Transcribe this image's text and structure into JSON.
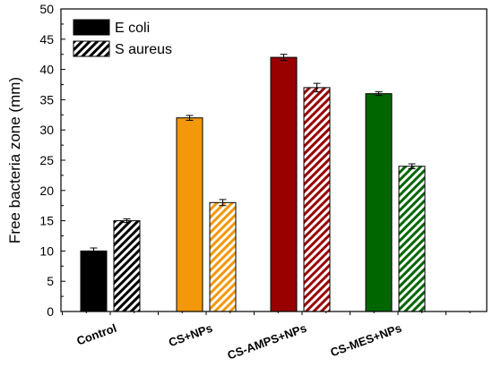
{
  "chart_data": {
    "type": "bar",
    "title": "",
    "xlabel": "",
    "ylabel": "Free bacteria zone (mm)",
    "ylim": [
      0,
      50
    ],
    "yticks": [
      0,
      5,
      10,
      15,
      20,
      25,
      30,
      35,
      40,
      45,
      50
    ],
    "grid": false,
    "legend_position": "top-left",
    "categories": [
      "Control",
      "CS+NPs",
      "CS-AMPS+NPs",
      "CS-MES+NPs"
    ],
    "series": [
      {
        "name": "E coli",
        "pattern": "solid",
        "values": [
          10,
          32,
          42,
          36
        ],
        "errors": [
          0.5,
          0.4,
          0.5,
          0.3
        ]
      },
      {
        "name": "S aureus",
        "pattern": "hatched",
        "values": [
          15,
          18,
          37,
          24
        ],
        "errors": [
          0.3,
          0.5,
          0.7,
          0.4
        ]
      }
    ],
    "bar_colors": [
      "#000000",
      "#f2980a",
      "#990000",
      "#006600"
    ],
    "legend_swatch_color": "#000000"
  }
}
